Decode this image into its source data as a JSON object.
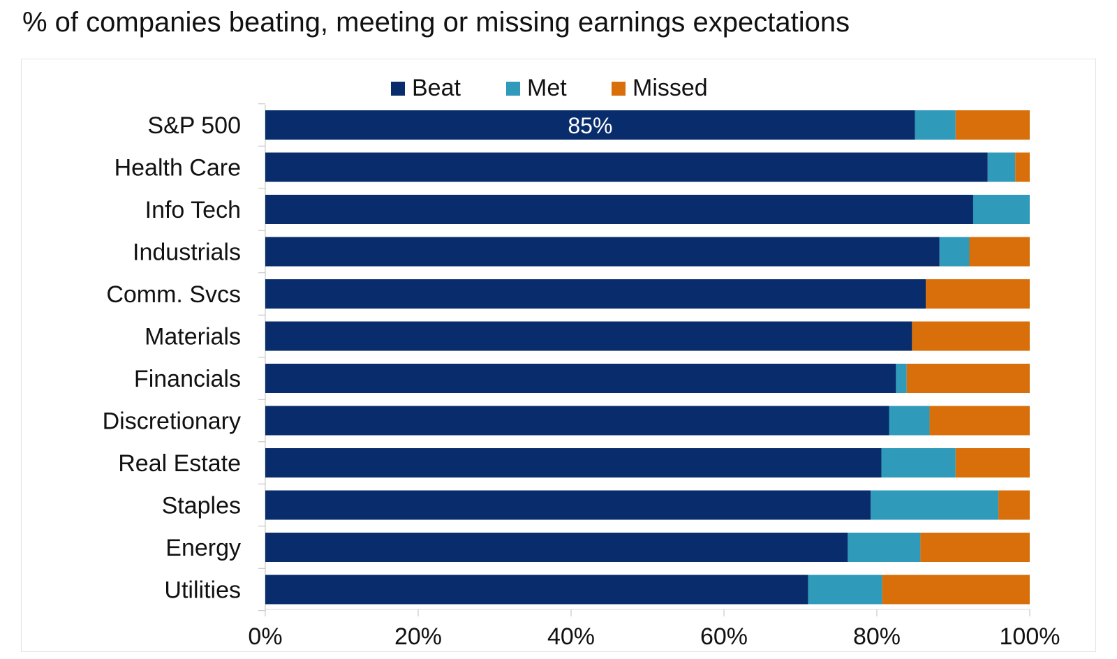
{
  "title": "% of companies beating, meeting or missing earnings expectations",
  "colors": {
    "beat": "#082c6c",
    "met": "#2f9ab9",
    "missed": "#d86f0a",
    "grid": "#d9d9d9",
    "axis": "#bfbfbf"
  },
  "chart_data": {
    "type": "bar",
    "orientation": "horizontal",
    "stacked": true,
    "title": "% of companies beating, meeting or missing earnings expectations",
    "categories": [
      "S&P 500",
      "Health Care",
      "Info Tech",
      "Industrials",
      "Comm. Svcs",
      "Materials",
      "Financials",
      "Discretionary",
      "Real Estate",
      "Staples",
      "Energy",
      "Utilities"
    ],
    "series": [
      {
        "name": "Beat",
        "values": [
          85,
          94.5,
          92.6,
          88.2,
          86.4,
          84.6,
          82.5,
          81.6,
          80.6,
          79.2,
          76.2,
          71
        ]
      },
      {
        "name": "Met",
        "values": [
          5.3,
          3.6,
          7.4,
          3.9,
          0,
          0,
          1.4,
          5.3,
          9.7,
          16.7,
          9.5,
          9.7
        ]
      },
      {
        "name": "Missed",
        "values": [
          9.7,
          1.9,
          0,
          7.9,
          13.6,
          15.4,
          16.1,
          13.1,
          9.7,
          4.1,
          14.3,
          19.3
        ]
      }
    ],
    "data_labels": [
      {
        "category": "S&P 500",
        "series": "Beat",
        "text": "85%"
      }
    ],
    "xlim": [
      0,
      100
    ],
    "xticks": [
      "0%",
      "20%",
      "40%",
      "60%",
      "80%",
      "100%"
    ],
    "xlabel": "",
    "ylabel": "",
    "legend": {
      "position": "top",
      "entries": [
        "Beat",
        "Met",
        "Missed"
      ]
    },
    "grid": false
  }
}
